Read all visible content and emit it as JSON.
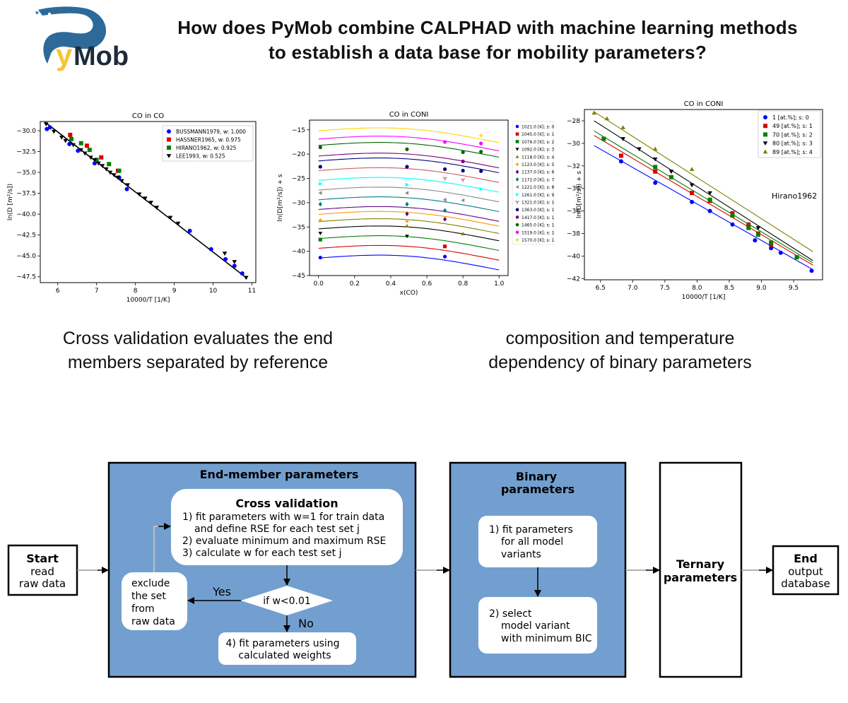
{
  "logo": {
    "text_y": "y",
    "text_mob": "Mob",
    "colors": {
      "blue": "#2d6a9a",
      "yellow": "#f5c531",
      "dark": "#1d2b3a"
    }
  },
  "header": {
    "title_line1": "How does PyMob combine CALPHAD with machine learning methods",
    "title_line2": "to establish a data base for mobility parameters?"
  },
  "captions": {
    "left_line1": "Cross validation evaluates the end",
    "left_line2": "members  separated by reference",
    "right_line1": "composition and temperature",
    "right_line2": "dependency of binary parameters"
  },
  "chart_data": [
    {
      "type": "scatter",
      "title": "CO in CO",
      "xlabel": "10000/T [1/K]",
      "ylabel": "ln(D [m²/s])",
      "xlim": [
        5.55,
        11.1
      ],
      "ylim": [
        -48.2,
        -28.9
      ],
      "xticks": [
        6,
        7,
        8,
        9,
        10,
        11
      ],
      "yticks": [
        -30.0,
        -32.5,
        -35.0,
        -37.5,
        -40.0,
        -42.5,
        -45.0,
        -47.5
      ],
      "legend_position": "top-right",
      "fit_line": {
        "x": [
          5.68,
          10.85
        ],
        "y": [
          -29.0,
          -47.6
        ]
      },
      "series": [
        {
          "name": "BUSSMANN1979, w: 1.000",
          "color": "#0000ff",
          "marker": "circle",
          "x": [
            5.72,
            5.8,
            6.3,
            6.52,
            6.95,
            7.58,
            7.78,
            9.4,
            9.95,
            10.32,
            10.55,
            10.75
          ],
          "y": [
            -29.8,
            -29.6,
            -31.6,
            -32.4,
            -33.9,
            -35.6,
            -37.0,
            -42.0,
            -44.2,
            -45.4,
            -46.2,
            -47.1
          ]
        },
        {
          "name": "HASSNER1965, w: 0.975",
          "color": "#dd0000",
          "marker": "square",
          "x": [
            6.32,
            6.75,
            7.12,
            7.55
          ],
          "y": [
            -30.5,
            -31.8,
            -33.2,
            -34.8
          ]
        },
        {
          "name": "HIRANO1962, w: 0.925",
          "color": "#008000",
          "marker": "square",
          "x": [
            6.35,
            6.6,
            6.82,
            7.0,
            7.32,
            7.58
          ],
          "y": [
            -31.0,
            -31.5,
            -32.3,
            -33.5,
            -34.0,
            -34.8
          ]
        },
        {
          "name": "LEE1993, w: 0.525",
          "color": "#000000",
          "marker": "triangle-down",
          "x": [
            5.7,
            5.9,
            6.1,
            6.2,
            6.4,
            6.6,
            6.7,
            6.85,
            6.95,
            7.05,
            7.15,
            7.25,
            7.35,
            7.45,
            7.55,
            7.65,
            7.8,
            8.1,
            8.25,
            8.4,
            8.55,
            8.9,
            9.1,
            10.3,
            10.55,
            10.85
          ],
          "y": [
            -29.2,
            -30.1,
            -30.8,
            -31.2,
            -31.7,
            -32.3,
            -32.7,
            -33.2,
            -33.5,
            -33.9,
            -34.2,
            -34.6,
            -35.0,
            -35.3,
            -35.6,
            -36.0,
            -36.5,
            -37.6,
            -38.1,
            -38.6,
            -39.2,
            -40.4,
            -41.1,
            -44.7,
            -45.7,
            -47.6
          ]
        }
      ]
    },
    {
      "type": "line",
      "title": "CO in CONI",
      "xlabel": "x(CO)",
      "ylabel": "ln(D[m²/s]) + s",
      "xlim": [
        -0.05,
        1.05
      ],
      "ylim": [
        -45,
        -13
      ],
      "xticks": [
        0.0,
        0.2,
        0.4,
        0.6,
        0.8,
        1.0
      ],
      "xtick_labels": [
        "0.0",
        "0.2",
        "0.4",
        "0.6",
        "0.8",
        "1.0"
      ],
      "yticks": [
        -15,
        -20,
        -25,
        -30,
        -35,
        -40,
        -45
      ],
      "legend_position": "outside-right",
      "series": [
        {
          "name": "1021.0 [K]; s: 0",
          "color": "#0000ff",
          "marker": "circle",
          "offset": -41.0,
          "points": [
            [
              0.01,
              -41.3
            ],
            [
              0.7,
              -41.1
            ]
          ]
        },
        {
          "name": "1045.0 [K]; s: 1",
          "color": "#dd0000",
          "marker": "square",
          "offset": -39.0,
          "points": [
            [
              0.7,
              -39.0
            ]
          ]
        },
        {
          "name": "1076.0 [K]; s: 2",
          "color": "#008000",
          "marker": "square",
          "offset": -37.0,
          "points": [
            [
              0.01,
              -37.6
            ]
          ]
        },
        {
          "name": "1092.0 [K]; s: 3",
          "color": "#000000",
          "marker": "triangle-down",
          "offset": -35.0,
          "points": [
            [
              0.01,
              -36.3
            ],
            [
              0.49,
              -36.9
            ]
          ]
        },
        {
          "name": "1118.0 [K]; s: 4",
          "color": "#808000",
          "marker": "triangle-up",
          "offset": -33.5,
          "points": [
            [
              0.49,
              -34.8
            ],
            [
              0.8,
              -36.4
            ]
          ]
        },
        {
          "name": "1123.0 [K]; s: 5",
          "color": "#ff9900",
          "marker": "plus",
          "offset": -32.0,
          "points": [
            [
              0.01,
              -33.6
            ],
            [
              0.49,
              -33.8
            ]
          ]
        },
        {
          "name": "1137.0 [K]; s: 6",
          "color": "#5b0b8c",
          "marker": "diamond",
          "offset": -31.0,
          "points": [
            [
              0.49,
              -32.3
            ],
            [
              0.7,
              -33.4
            ]
          ]
        },
        {
          "name": "1172.0 [K]; s: 7",
          "color": "#008080",
          "marker": "diamond",
          "offset": -29.0,
          "points": [
            [
              0.01,
              -30.3
            ],
            [
              0.49,
              -30.3
            ],
            [
              0.7,
              -31.6
            ]
          ]
        },
        {
          "name": "1221.0 [K]; s: 8",
          "color": "#888888",
          "marker": "triangle-left",
          "offset": -27.0,
          "points": [
            [
              0.01,
              -28.0
            ],
            [
              0.49,
              -28.0
            ],
            [
              0.7,
              -29.4
            ],
            [
              0.8,
              -29.5
            ]
          ]
        },
        {
          "name": "1261.0 [K]; s: 9",
          "color": "#00ffff",
          "marker": "triangle-right",
          "offset": -25.0,
          "points": [
            [
              0.01,
              -26.1
            ],
            [
              0.49,
              -26.3
            ],
            [
              0.9,
              -27.2
            ]
          ]
        },
        {
          "name": "1321.0 [K]; s: 10",
          "color": "#cd5c5c",
          "marker": "tri",
          "offset": -23.0,
          "points": [
            [
              0.7,
              -25.0
            ],
            [
              0.8,
              -25.3
            ]
          ]
        },
        {
          "name": "1363.0 [K]; s: 11",
          "color": "#000080",
          "marker": "circle",
          "offset": -21.0,
          "points": [
            [
              0.01,
              -22.6
            ],
            [
              0.49,
              -22.6
            ],
            [
              0.7,
              -23.1
            ],
            [
              0.8,
              -23.4
            ],
            [
              0.9,
              -23.5
            ]
          ]
        },
        {
          "name": "1417.0 [K]; s: 12",
          "color": "#800080",
          "marker": "circle",
          "offset": -20.0,
          "points": [
            [
              0.8,
              -21.5
            ]
          ]
        },
        {
          "name": "1465.0 [K]; s: 13",
          "color": "#006400",
          "marker": "circle",
          "offset": -17.8,
          "points": [
            [
              0.01,
              -18.6
            ],
            [
              0.49,
              -19.0
            ],
            [
              0.8,
              -19.6
            ],
            [
              0.9,
              -19.5
            ]
          ]
        },
        {
          "name": "1519.0 [K]; s: 14",
          "color": "#ff00ff",
          "marker": "circle",
          "offset": -16.5,
          "points": [
            [
              0.7,
              -17.5
            ],
            [
              0.9,
              -17.8
            ]
          ]
        },
        {
          "name": "1570.0 [K]; s: 15",
          "color": "#ffd700",
          "marker": "plus",
          "offset": -14.8,
          "points": [
            [
              0.9,
              -16.2
            ]
          ]
        }
      ]
    },
    {
      "type": "scatter",
      "title": "CO in CONI",
      "annotation": "Hirano1962",
      "xlabel": "10000/T [1/K]",
      "ylabel": "ln(D[m²/s]) + s",
      "xlim": [
        6.25,
        9.95
      ],
      "ylim": [
        -42.1,
        -27.0
      ],
      "xticks": [
        6.5,
        7.0,
        7.5,
        8.0,
        8.5,
        9.0,
        9.5
      ],
      "xtick_labels": [
        "6.5",
        "7.0",
        "7.5",
        "8.0",
        "8.5",
        "9.0",
        "9.5"
      ],
      "yticks": [
        -28,
        -30,
        -32,
        -34,
        -36,
        -38,
        -40,
        -42
      ],
      "legend_position": "top-right",
      "series": [
        {
          "name": "1 [at.%]; s: 0",
          "color": "#0000ff",
          "marker": "circle",
          "line": [
            [
              6.4,
              -30.2
            ],
            [
              9.8,
              -41.2
            ]
          ],
          "x": [
            6.82,
            7.35,
            7.92,
            8.2,
            8.55,
            8.9,
            9.15,
            9.3,
            9.78
          ],
          "y": [
            -31.6,
            -33.5,
            -35.2,
            -36.0,
            -37.2,
            -38.6,
            -39.3,
            -39.7,
            -41.3
          ]
        },
        {
          "name": "49 [at.%]; s: 1",
          "color": "#dd0000",
          "marker": "square",
          "line": [
            [
              6.4,
              -29.3
            ],
            [
              9.8,
              -40.8
            ]
          ],
          "x": [
            6.82,
            7.35,
            7.92,
            8.2,
            8.55,
            8.8,
            8.95,
            9.15
          ],
          "y": [
            -31.1,
            -32.5,
            -34.4,
            -35.1,
            -36.2,
            -37.2,
            -38.0,
            -39.0
          ]
        },
        {
          "name": "70 [at.%]; s: 2",
          "color": "#008000",
          "marker": "square",
          "line": [
            [
              6.4,
              -28.9
            ],
            [
              9.8,
              -40.6
            ]
          ],
          "x": [
            6.55,
            7.35,
            7.6,
            8.2,
            8.55,
            8.8,
            8.95,
            9.15,
            9.55
          ],
          "y": [
            -29.6,
            -32.1,
            -33.0,
            -35.0,
            -36.4,
            -37.5,
            -38.1,
            -38.8,
            -40.1
          ]
        },
        {
          "name": "80 [at.%]; s: 3",
          "color": "#000000",
          "marker": "triangle-down",
          "line": [
            [
              6.4,
              -28.0
            ],
            [
              9.8,
              -40.4
            ]
          ],
          "x": [
            6.85,
            7.1,
            7.35,
            7.6,
            7.92,
            8.2,
            8.95
          ],
          "y": [
            -29.6,
            -30.5,
            -31.4,
            -32.5,
            -33.7,
            -34.4,
            -37.5
          ]
        },
        {
          "name": "89 [at.%]; s: 4",
          "color": "#808000",
          "marker": "triangle-up",
          "line": [
            [
              6.4,
              -27.2
            ],
            [
              9.8,
              -39.6
            ]
          ],
          "x": [
            6.4,
            6.6,
            6.85,
            7.35,
            7.92
          ],
          "y": [
            -27.3,
            -27.8,
            -28.6,
            -30.5,
            -32.3
          ]
        }
      ]
    }
  ],
  "flowchart": {
    "start": {
      "title": "Start",
      "line1": "read",
      "line2": "raw data"
    },
    "end_member": {
      "title": "End-member parameters"
    },
    "cross_validation": {
      "title": "Cross validation",
      "line1": "1) fit parameters with w=1 for train data",
      "line2": "and define RSE for each test set j",
      "line3": "2) evaluate minimum and maximum RSE",
      "line4": "3) calculate w for each test set j"
    },
    "exclude": {
      "line1": "exclude",
      "line2": "the set",
      "line3": "from",
      "line4": "raw data"
    },
    "decision": {
      "label": "if w<0.01",
      "yes": "Yes",
      "no": "No"
    },
    "fit_weights": {
      "line1": "4) fit parameters using",
      "line2": "calculated weights"
    },
    "binary": {
      "title_line1": "Binary",
      "title_line2": "parameters",
      "step1_line1": "1) fit parameters",
      "step1_line2": "for all model",
      "step1_line3": "variants",
      "step2_line1": "2) select",
      "step2_line2": "model variant",
      "step2_line3": "with minimum BIC"
    },
    "ternary": {
      "line1": "Ternary",
      "line2": "parameters"
    },
    "end": {
      "title": "End",
      "line1": "output",
      "line2": "database"
    },
    "colors": {
      "panel": "#729fcf",
      "box": "#ffffff",
      "border": "#000000",
      "arrow": "#000000",
      "connector": "#999999"
    }
  }
}
